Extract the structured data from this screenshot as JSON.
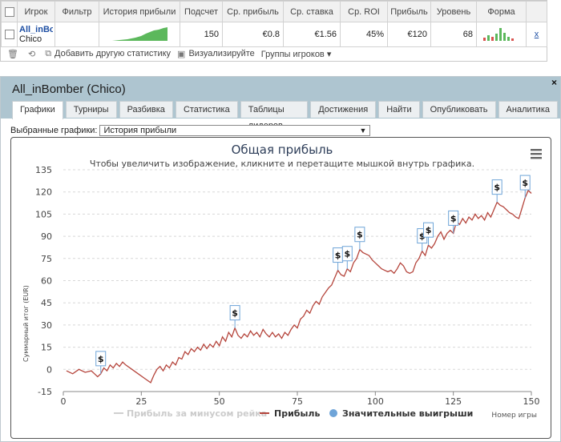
{
  "stats_table": {
    "headers": [
      "Игрок",
      "Фильтр",
      "История прибыли",
      "Подсчет",
      "Ср. прибыль",
      "Ср. ставка",
      "Ср. ROI",
      "Прибыль",
      "Уровень",
      "Форма"
    ],
    "row": {
      "player_name": "All_inBo",
      "site": "Chico",
      "count": "150",
      "avg_profit": "€0.8",
      "avg_stake": "€1.56",
      "avg_roi": "45%",
      "profit": "€120",
      "level": "68",
      "remove": "x"
    }
  },
  "toolbar": {
    "add_stat_label": "Добавить другую статистику",
    "visualize_label": "Визуализируйте",
    "groups_label": "Группы игроков ▾"
  },
  "dialog": {
    "title": "All_inBomber (Chico)",
    "close": "×",
    "tabs": [
      "Графики",
      "Турниры",
      "Разбивка",
      "Статистика",
      "Таблицы лидеров",
      "Достижения",
      "Найти",
      "Опубликовать",
      "Аналитика"
    ],
    "active_tab": 0,
    "select_label": "Выбранные графики:",
    "select_value": "История прибыли"
  },
  "colors": {
    "profit_line": "#b5453c",
    "rake_line": "#cfcfcf",
    "win_marker": "#6ea4d8",
    "header_bg": "#aec5d0",
    "title_color": "#2f3f5a"
  },
  "chart_data": {
    "type": "line",
    "title": "Общая прибыль",
    "subtitle": "Чтобы увеличить изображение, кликните и перетащите мышкой внутрь графика.",
    "xlabel": "Номер игры",
    "ylabel": "Суммарный итог (EUR)",
    "xlim": [
      0,
      150
    ],
    "ylim": [
      -15,
      135
    ],
    "x_ticks": [
      0,
      25,
      50,
      75,
      100,
      125,
      150
    ],
    "y_ticks": [
      -15,
      0,
      15,
      30,
      45,
      60,
      75,
      90,
      105,
      120,
      135
    ],
    "legend": [
      "Прибыль за минусом рейка",
      "Прибыль",
      "Значительные выигрыши"
    ],
    "series": [
      {
        "name": "Прибыль",
        "points": [
          [
            1,
            -1
          ],
          [
            3,
            -3
          ],
          [
            5,
            0
          ],
          [
            7,
            -2
          ],
          [
            9,
            -1
          ],
          [
            10,
            -3
          ],
          [
            11,
            -5
          ],
          [
            12,
            -3
          ],
          [
            13,
            1
          ],
          [
            14,
            -1
          ],
          [
            15,
            3
          ],
          [
            16,
            1
          ],
          [
            17,
            4
          ],
          [
            18,
            2
          ],
          [
            19,
            5
          ],
          [
            20,
            3
          ],
          [
            22,
            0
          ],
          [
            24,
            -3
          ],
          [
            26,
            -6
          ],
          [
            28,
            -9
          ],
          [
            29,
            -4
          ],
          [
            30,
            0
          ],
          [
            31,
            2
          ],
          [
            32,
            -1
          ],
          [
            33,
            3
          ],
          [
            34,
            1
          ],
          [
            35,
            5
          ],
          [
            36,
            3
          ],
          [
            37,
            8
          ],
          [
            38,
            7
          ],
          [
            39,
            12
          ],
          [
            40,
            10
          ],
          [
            41,
            14
          ],
          [
            42,
            12
          ],
          [
            43,
            15
          ],
          [
            44,
            13
          ],
          [
            45,
            17
          ],
          [
            46,
            14
          ],
          [
            47,
            17
          ],
          [
            48,
            15
          ],
          [
            49,
            19
          ],
          [
            50,
            16
          ],
          [
            51,
            22
          ],
          [
            52,
            19
          ],
          [
            53,
            25
          ],
          [
            54,
            22
          ],
          [
            55,
            28
          ],
          [
            56,
            23
          ],
          [
            57,
            21
          ],
          [
            58,
            24
          ],
          [
            59,
            22
          ],
          [
            60,
            26
          ],
          [
            61,
            23
          ],
          [
            62,
            25
          ],
          [
            63,
            22
          ],
          [
            64,
            27
          ],
          [
            65,
            24
          ],
          [
            66,
            22
          ],
          [
            67,
            25
          ],
          [
            68,
            22
          ],
          [
            69,
            24
          ],
          [
            70,
            21
          ],
          [
            71,
            25
          ],
          [
            72,
            23
          ],
          [
            73,
            27
          ],
          [
            74,
            30
          ],
          [
            75,
            28
          ],
          [
            76,
            34
          ],
          [
            77,
            36
          ],
          [
            78,
            40
          ],
          [
            79,
            38
          ],
          [
            80,
            43
          ],
          [
            81,
            46
          ],
          [
            82,
            44
          ],
          [
            83,
            49
          ],
          [
            84,
            52
          ],
          [
            85,
            55
          ],
          [
            86,
            57
          ],
          [
            87,
            62
          ],
          [
            88,
            67
          ],
          [
            89,
            64
          ],
          [
            90,
            63
          ],
          [
            91,
            68
          ],
          [
            92,
            66
          ],
          [
            93,
            72
          ],
          [
            94,
            75
          ],
          [
            95,
            81
          ],
          [
            96,
            79
          ],
          [
            97,
            78
          ],
          [
            98,
            77
          ],
          [
            99,
            74
          ],
          [
            100,
            72
          ],
          [
            101,
            70
          ],
          [
            102,
            68
          ],
          [
            103,
            67
          ],
          [
            104,
            66
          ],
          [
            105,
            67
          ],
          [
            106,
            65
          ],
          [
            107,
            68
          ],
          [
            108,
            72
          ],
          [
            109,
            70
          ],
          [
            110,
            66
          ],
          [
            111,
            65
          ],
          [
            112,
            66
          ],
          [
            113,
            72
          ],
          [
            114,
            75
          ],
          [
            115,
            80
          ],
          [
            116,
            77
          ],
          [
            117,
            84
          ],
          [
            118,
            82
          ],
          [
            119,
            85
          ],
          [
            120,
            90
          ],
          [
            121,
            93
          ],
          [
            122,
            88
          ],
          [
            123,
            92
          ],
          [
            124,
            94
          ],
          [
            125,
            92
          ],
          [
            126,
            100
          ],
          [
            127,
            98
          ],
          [
            128,
            102
          ],
          [
            129,
            99
          ],
          [
            130,
            103
          ],
          [
            131,
            101
          ],
          [
            132,
            105
          ],
          [
            133,
            102
          ],
          [
            134,
            104
          ],
          [
            135,
            101
          ],
          [
            136,
            106
          ],
          [
            137,
            103
          ],
          [
            138,
            108
          ],
          [
            139,
            113
          ],
          [
            140,
            111
          ],
          [
            141,
            110
          ],
          [
            142,
            108
          ],
          [
            143,
            106
          ],
          [
            144,
            105
          ],
          [
            145,
            103
          ],
          [
            146,
            102
          ],
          [
            147,
            109
          ],
          [
            148,
            116
          ],
          [
            149,
            121
          ],
          [
            150,
            119
          ]
        ]
      }
    ],
    "big_wins": [
      [
        12,
        -3
      ],
      [
        55,
        28
      ],
      [
        88,
        67
      ],
      [
        91,
        68
      ],
      [
        95,
        81
      ],
      [
        115,
        80
      ],
      [
        117,
        84
      ],
      [
        125,
        92
      ],
      [
        139,
        113
      ],
      [
        148,
        116
      ]
    ]
  }
}
